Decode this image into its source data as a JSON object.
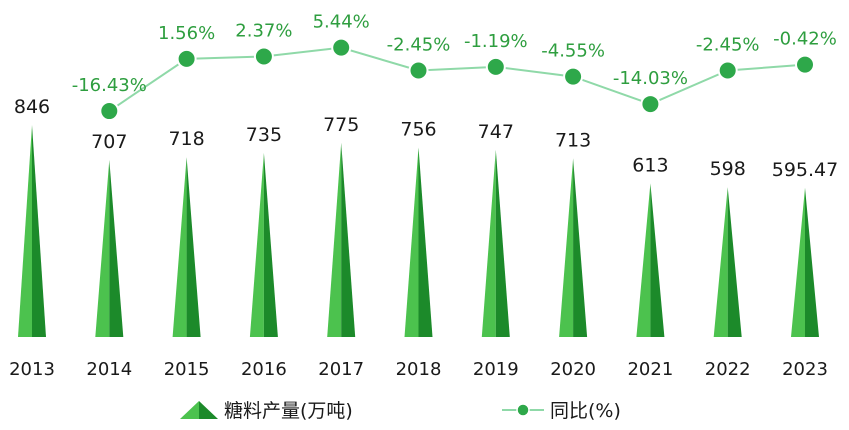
{
  "chart_data": {
    "type": "bar",
    "categories": [
      "2013",
      "2014",
      "2015",
      "2016",
      "2017",
      "2018",
      "2019",
      "2020",
      "2021",
      "2022",
      "2023"
    ],
    "series": [
      {
        "name": "糖料产量(万吨)",
        "type": "bar",
        "values": [
          846,
          707,
          718,
          735,
          775,
          756,
          747,
          713,
          613,
          598,
          595.47
        ],
        "labels": [
          "846",
          "707",
          "718",
          "735",
          "775",
          "756",
          "747",
          "713",
          "613",
          "598",
          "595.47"
        ]
      },
      {
        "name": "同比(%)",
        "type": "line",
        "values": [
          null,
          -16.43,
          1.56,
          2.37,
          5.44,
          -2.45,
          -1.19,
          -4.55,
          -14.03,
          -2.45,
          -0.42
        ],
        "labels": [
          "",
          "-16.43%",
          "1.56%",
          "2.37%",
          "5.44%",
          "-2.45%",
          "-1.19%",
          "-4.55%",
          "-14.03%",
          "-2.45%",
          "-0.42%"
        ]
      }
    ],
    "legend_position": "bottom",
    "grid": false,
    "colors": {
      "bar_light": "#4cc24e",
      "bar_dark": "#1c8a2a",
      "line": "#8fd9a8",
      "marker": "#2ea84a",
      "marker_stroke": "#ffffff",
      "pct_text": "#2e9e3f"
    }
  }
}
